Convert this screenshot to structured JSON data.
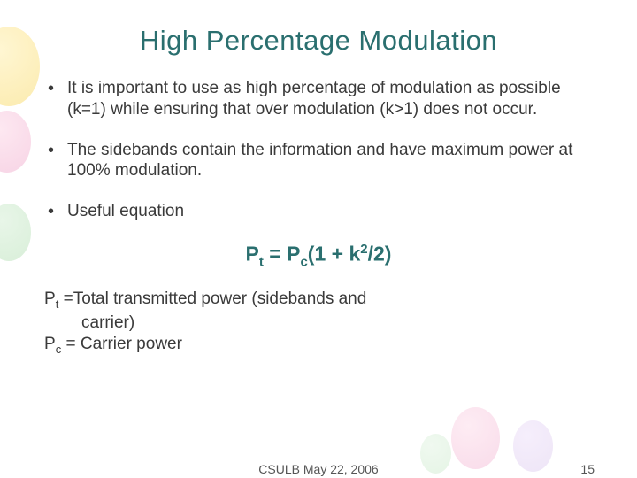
{
  "colors": {
    "title": "#2a6f6f",
    "body": "#3a3a3a",
    "equation": "#2a6f6f",
    "footer": "#555555",
    "background": "#ffffff"
  },
  "title": "High Percentage Modulation",
  "bullets": [
    "It is important to use as high percentage of modulation as possible (k=1) while ensuring that over modulation (k>1) does not occur.",
    "The sidebands contain the information and have maximum power at 100% modulation.",
    "Useful equation"
  ],
  "equation": {
    "lhs_base": "P",
    "lhs_sub": "t",
    "eq": " = ",
    "rhs_base": "P",
    "rhs_sub": "c",
    "open": "(1 + k",
    "exp": "2",
    "close": "/2)"
  },
  "defs": {
    "line1_sym_base": "P",
    "line1_sym_sub": "t",
    "line1_eq": " =",
    "line1_text": "Total transmitted power (sidebands and",
    "line2_text": "carrier)",
    "line3_sym_base": "P",
    "line3_sym_sub": "c",
    "line3_eq": " =  ",
    "line3_text": "Carrier power"
  },
  "footer": {
    "center": "CSULB   May 22, 2006",
    "page": "15"
  }
}
